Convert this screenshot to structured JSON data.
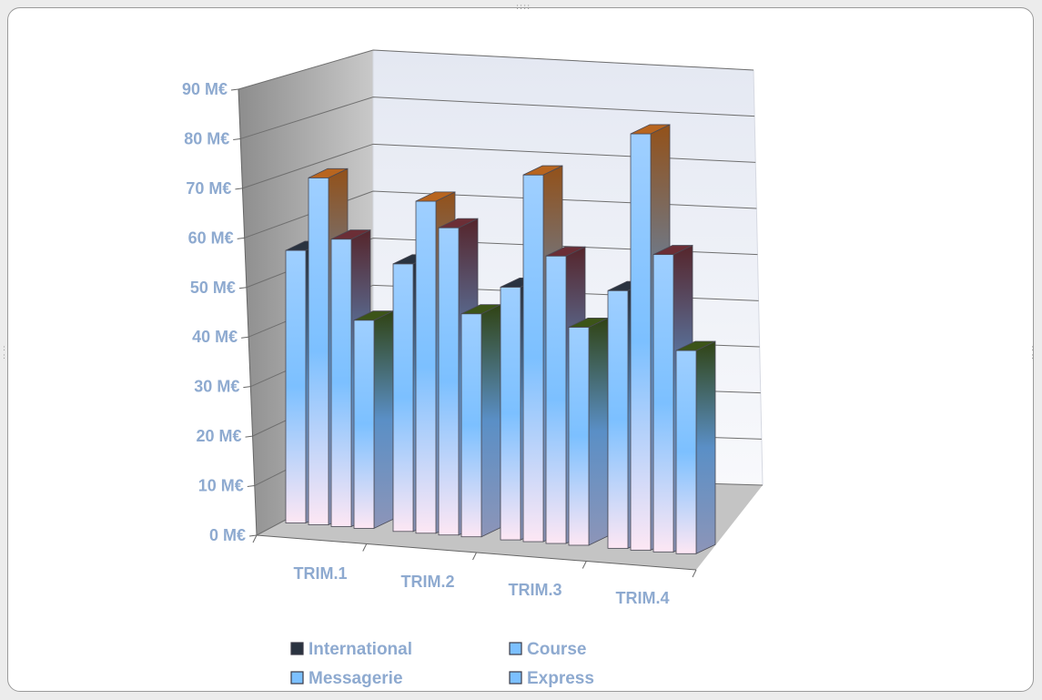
{
  "chart_data": {
    "type": "bar",
    "variant": "3d-clustered-column",
    "title": "",
    "xlabel": "",
    "ylabel": "",
    "categories": [
      "TRIM.1",
      "TRIM.2",
      "TRIM.3",
      "TRIM.4"
    ],
    "series": [
      {
        "name": "International",
        "values": [
          55,
          54,
          51,
          52
        ]
      },
      {
        "name": "Course",
        "values": [
          70,
          67,
          74,
          84
        ]
      },
      {
        "name": "Messagerie",
        "values": [
          58,
          62,
          58,
          60
        ]
      },
      {
        "name": "Express",
        "values": [
          42,
          45,
          44,
          41
        ]
      }
    ],
    "ylim": [
      0,
      90
    ],
    "yticks": [
      0,
      10,
      20,
      30,
      40,
      50,
      60,
      70,
      80,
      90
    ],
    "y_tick_labels": [
      "0 M€",
      "10 M€",
      "20 M€",
      "30 M€",
      "40 M€",
      "50 M€",
      "60 M€",
      "70 M€",
      "80 M€",
      "90 M€"
    ],
    "grid": true,
    "legend_position": "bottom"
  },
  "colors": {
    "axis_text": "#8eaad0",
    "International": "#2a3340",
    "Course": "#b8651f",
    "Messagerie": "#6b2e36",
    "Express": "#3c5418",
    "bar_light": "#fde7f4",
    "bar_mid": "#7cc0ff"
  }
}
